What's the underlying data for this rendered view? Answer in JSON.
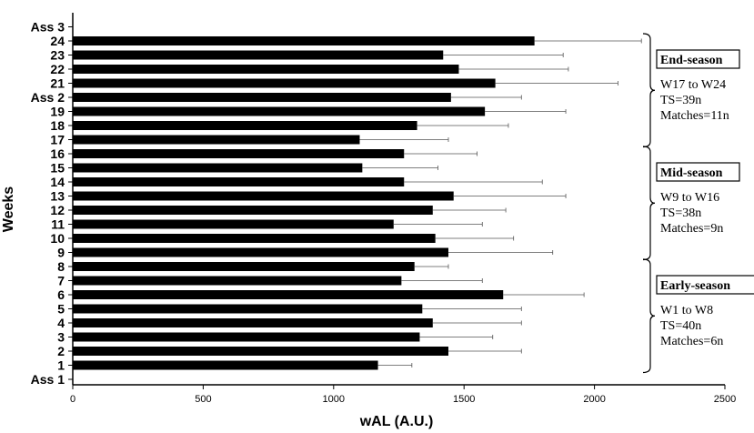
{
  "chart_data": {
    "type": "bar",
    "orientation": "horizontal",
    "categories": [
      "Ass 3",
      "24",
      "23",
      "22",
      "21",
      "Ass 2",
      "19",
      "18",
      "17",
      "16",
      "15",
      "14",
      "13",
      "12",
      "11",
      "10",
      "9",
      "8",
      "7",
      "6",
      "5",
      "4",
      "3",
      "2",
      "1",
      "Ass 1"
    ],
    "values": [
      null,
      1770,
      1420,
      1480,
      1620,
      1450,
      1580,
      1320,
      1100,
      1270,
      1110,
      1270,
      1460,
      1380,
      1230,
      1390,
      1440,
      1310,
      1260,
      1650,
      1340,
      1380,
      1330,
      1440,
      1170,
      null
    ],
    "error": [
      null,
      410,
      460,
      420,
      470,
      270,
      310,
      350,
      340,
      280,
      290,
      530,
      430,
      280,
      340,
      300,
      400,
      130,
      310,
      310,
      380,
      340,
      280,
      280,
      130,
      null
    ],
    "xlabel": "wAL (A.U.)",
    "ylabel": "Weeks",
    "xlim": [
      0,
      2500
    ],
    "xticks": [
      "0",
      "500",
      "1000",
      "1500",
      "2000",
      "2500"
    ],
    "grid": false,
    "phases": [
      {
        "title": "End-season",
        "lines": [
          "W17 to W24",
          "TS=39n",
          "Matches=11n"
        ],
        "from": "24",
        "to": "17"
      },
      {
        "title": "Mid-season",
        "lines": [
          "W9 to W16",
          "TS=38n",
          "Matches=9n"
        ],
        "from": "16",
        "to": "9"
      },
      {
        "title": "Early-season",
        "lines": [
          "W1 to W8",
          "TS=40n",
          "Matches=6n"
        ],
        "from": "8",
        "to": "1"
      }
    ]
  }
}
